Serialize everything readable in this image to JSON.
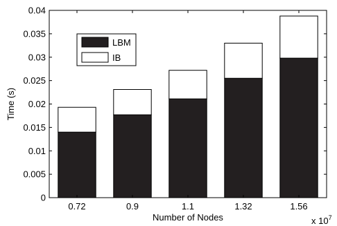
{
  "chart_data": {
    "type": "bar",
    "stacked": true,
    "categories": [
      "0.72",
      "0.9",
      "1.1",
      "1.32",
      "1.56"
    ],
    "series": [
      {
        "name": "LBM",
        "values": [
          0.014,
          0.0177,
          0.0211,
          0.0255,
          0.0298
        ],
        "color": "#231f20"
      },
      {
        "name": "IB",
        "values": [
          0.0053,
          0.0054,
          0.0061,
          0.0075,
          0.009
        ],
        "color": "#ffffff"
      }
    ],
    "xlabel": "Number of Nodes",
    "x_multiplier": "x 10",
    "x_multiplier_exp": "7",
    "ylabel": "Time (s)",
    "ylim": [
      0,
      0.04
    ],
    "yticks": [
      "0",
      "0.005",
      "0.01",
      "0.015",
      "0.02",
      "0.025",
      "0.03",
      "0.035",
      "0.04"
    ],
    "ytick_values": [
      0,
      0.005,
      0.01,
      0.015,
      0.02,
      0.025,
      0.03,
      0.035,
      0.04
    ],
    "grid": false,
    "legend_position": "top-left"
  }
}
